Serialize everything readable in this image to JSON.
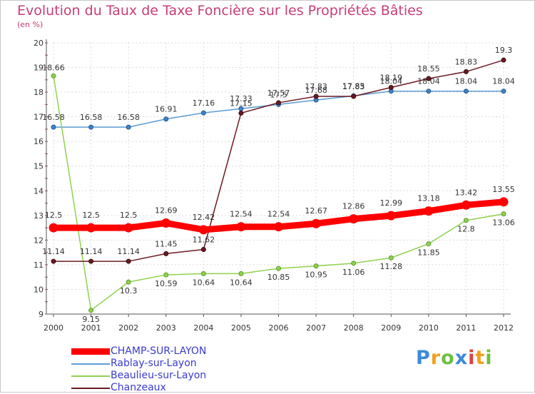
{
  "page": {
    "title": "Evolution du Taux de Taxe Foncière sur les Propriétés Bâties",
    "subtitle": "(en %)",
    "brand": "Proxiti",
    "brand_letters": [
      {
        "ch": "P",
        "color": "#3c8ad8"
      },
      {
        "ch": "r",
        "color": "#f0a020"
      },
      {
        "ch": "o",
        "color": "#6cc040"
      },
      {
        "ch": "x",
        "color": "#3c8ad8"
      },
      {
        "ch": "i",
        "color": "#e04040"
      },
      {
        "ch": "t",
        "color": "#f0a020"
      },
      {
        "ch": "i",
        "color": "#6cc040"
      }
    ]
  },
  "chart_data": {
    "type": "line",
    "title": "Evolution du Taux de Taxe Foncière sur les Propriétés Bâties",
    "ylabel": "(en %)",
    "xlabel": "",
    "ylim": [
      9,
      20
    ],
    "yticks": [
      9,
      10,
      11,
      12,
      13,
      14,
      15,
      16,
      17,
      18,
      19,
      20
    ],
    "categories": [
      "2000",
      "2001",
      "2002",
      "2003",
      "2004",
      "2005",
      "2006",
      "2007",
      "2008",
      "2009",
      "2010",
      "2011",
      "2012"
    ],
    "series": [
      {
        "name": "CHAMP-SUR-LAYON",
        "color": "#ff0000",
        "values": [
          12.5,
          12.5,
          12.5,
          12.69,
          12.42,
          12.54,
          12.54,
          12.67,
          12.86,
          12.99,
          13.18,
          13.42,
          13.55
        ],
        "labels": [
          "12.5",
          "12.5",
          "12.5",
          "12.69",
          "12.42",
          "12.54",
          "12.54",
          "12.67",
          "12.86",
          "12.99",
          "13.18",
          "13.42",
          "13.55"
        ]
      },
      {
        "name": "Rablay-sur-Layon",
        "color": "#5b9bd5",
        "values": [
          16.58,
          16.58,
          16.58,
          16.91,
          17.16,
          17.33,
          17.5,
          17.68,
          17.85,
          18.04,
          18.04,
          18.04,
          18.04
        ],
        "labels": [
          "16.58",
          "16.58",
          "16.58",
          "16.91",
          "17.16",
          "17.33",
          "17.5",
          "17.68",
          "17.85",
          "18.04",
          "18.04",
          "18.04",
          "18.04"
        ]
      },
      {
        "name": "Beaulieu-sur-Layon",
        "color": "#8fd14f",
        "values": [
          18.66,
          9.15,
          10.3,
          10.59,
          10.64,
          10.64,
          10.85,
          10.95,
          11.06,
          11.28,
          11.85,
          12.8,
          13.06
        ],
        "labels": [
          "18.66",
          "9.15",
          "10.3",
          "10.59",
          "10.64",
          "10.64",
          "10.85",
          "10.95",
          "11.06",
          "11.28",
          "11.85",
          "12.8",
          "13.06"
        ]
      },
      {
        "name": "Chanzeaux",
        "color": "#6b1a22",
        "values": [
          11.14,
          11.14,
          11.14,
          11.45,
          11.62,
          17.15,
          17.57,
          17.83,
          17.83,
          18.19,
          18.55,
          18.83,
          19.3
        ],
        "labels": [
          "11.14",
          "11.14",
          "11.14",
          "11.45",
          "11.62",
          "17.15",
          "17.57",
          "17.83",
          "17.83",
          "18.19",
          "18.55",
          "18.83",
          "19.3"
        ]
      }
    ],
    "legend_position": "bottom-left"
  }
}
